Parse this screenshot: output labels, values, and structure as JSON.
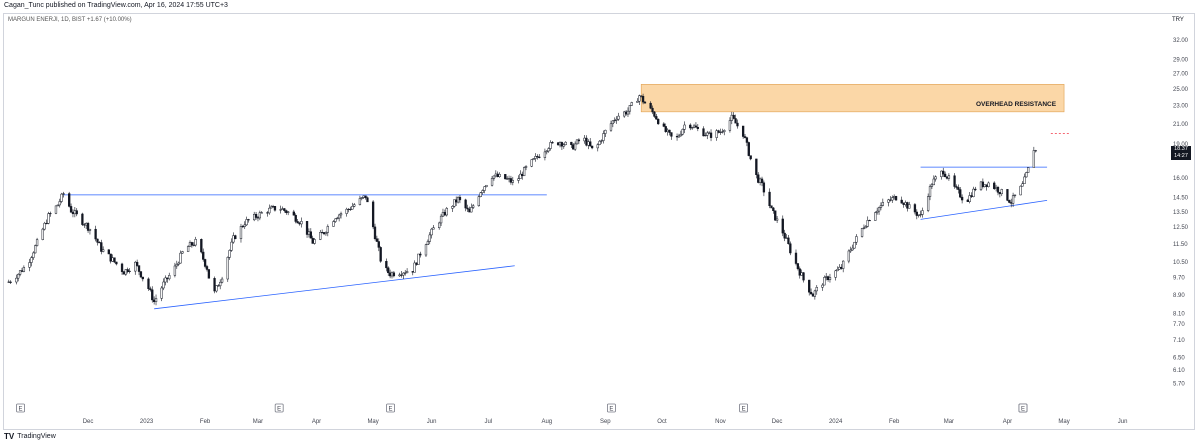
{
  "header": {
    "publish_line": "Cagan_Tunc published on TradingView.com, Apr 16, 2024 17:55 UTC+3",
    "legend": "MARGUN ENERJI, 1D, BIST  +1.67 (+10.00%)",
    "currency": "TRY"
  },
  "footer": {
    "logo_glyph": "TV",
    "brand": "TradingView"
  },
  "price_label": {
    "price": "18.37",
    "time": "14:27"
  },
  "colors": {
    "trendline": "#2962ff",
    "zone": "#f9c98a",
    "candle": "#131722",
    "price_label_bg": "#131722",
    "dashed_target": "#f23645"
  },
  "chart_data": {
    "type": "candlestick",
    "title": "MARGUN ENERJI, 1D, BIST",
    "y_scale": "log",
    "ylim": [
      5.2,
      35
    ],
    "y_ticks": [
      "32.00",
      "29.00",
      "27.00",
      "25.00",
      "23.00",
      "21.00",
      "19.00",
      "16.00",
      "14.50",
      "13.50",
      "12.50",
      "11.50",
      "10.50",
      "9.70",
      "8.90",
      "8.10",
      "7.70",
      "7.10",
      "6.50",
      "6.10",
      "5.70"
    ],
    "x_ticks": [
      "Dec",
      "2023",
      "Feb",
      "Mar",
      "Apr",
      "May",
      "Jun",
      "Jul",
      "Aug",
      "Sep",
      "Oct",
      "Nov",
      "Dec",
      "2024",
      "Feb",
      "Mar",
      "Apr",
      "May",
      "Jun"
    ],
    "event_markers": 7,
    "annotations": [
      {
        "type": "zone",
        "label": "OVERHEAD RESISTANCE",
        "from": "2023-09-20",
        "to": "2024-05-01",
        "low": 22.3,
        "high": 25.6
      },
      {
        "type": "horizontal",
        "from": "2022-11-18",
        "to": "2023-08-01",
        "price": 14.7
      },
      {
        "type": "trendline",
        "from": [
          "2023-01-05",
          8.3
        ],
        "to": [
          "2023-07-15",
          10.3
        ]
      },
      {
        "type": "horizontal",
        "from": "2024-02-15",
        "to": "2024-04-22",
        "price": 16.9
      },
      {
        "type": "trendline",
        "from": [
          "2024-02-15",
          13.0
        ],
        "to": [
          "2024-04-22",
          14.3
        ]
      },
      {
        "type": "dashed",
        "from": "2024-04-24",
        "to": "2024-05-04",
        "price": 20.0
      }
    ],
    "last_price": 18.37,
    "series": [
      {
        "name": "MARGUN ENERJI",
        "x": [
          "2022-10-20",
          "2022-10-25",
          "2022-10-30",
          "2022-11-05",
          "2022-11-10",
          "2022-11-15",
          "2022-11-18",
          "2022-11-22",
          "2022-11-27",
          "2022-12-02",
          "2022-12-08",
          "2022-12-14",
          "2022-12-20",
          "2022-12-26",
          "2023-01-02",
          "2023-01-05",
          "2023-01-10",
          "2023-01-16",
          "2023-01-21",
          "2023-01-27",
          "2023-02-02",
          "2023-02-05",
          "2023-02-10",
          "2023-02-16",
          "2023-02-22",
          "2023-02-28",
          "2023-03-06",
          "2023-03-12",
          "2023-03-18",
          "2023-03-24",
          "2023-03-30",
          "2023-04-05",
          "2023-04-11",
          "2023-04-17",
          "2023-04-23",
          "2023-04-27",
          "2023-05-02",
          "2023-05-06",
          "2023-05-10",
          "2023-05-16",
          "2023-05-22",
          "2023-05-28",
          "2023-06-03",
          "2023-06-09",
          "2023-06-15",
          "2023-06-21",
          "2023-06-27",
          "2023-07-03",
          "2023-07-09",
          "2023-07-15",
          "2023-07-21",
          "2023-07-27",
          "2023-08-02",
          "2023-08-08",
          "2023-08-14",
          "2023-08-20",
          "2023-08-26",
          "2023-09-01",
          "2023-09-07",
          "2023-09-13",
          "2023-09-19",
          "2023-09-23",
          "2023-09-27",
          "2023-10-02",
          "2023-10-08",
          "2023-10-14",
          "2023-10-20",
          "2023-10-26",
          "2023-11-01",
          "2023-11-07",
          "2023-11-13",
          "2023-11-19",
          "2023-11-23",
          "2023-11-28",
          "2023-12-04",
          "2023-12-10",
          "2023-12-16",
          "2023-12-20",
          "2023-12-24",
          "2023-12-29",
          "2024-01-04",
          "2024-01-10",
          "2024-01-16",
          "2024-01-22",
          "2024-01-28",
          "2024-02-03",
          "2024-02-09",
          "2024-02-15",
          "2024-02-21",
          "2024-02-27",
          "2024-03-04",
          "2024-03-10",
          "2024-03-16",
          "2024-03-22",
          "2024-03-28",
          "2024-04-03",
          "2024-04-09",
          "2024-04-12",
          "2024-04-16"
        ],
        "close": [
          9.5,
          9.9,
          10.4,
          11.8,
          13.2,
          14.0,
          14.8,
          13.6,
          13.0,
          12.4,
          11.2,
          10.6,
          10.0,
          10.4,
          9.2,
          8.6,
          9.4,
          10.2,
          11.2,
          11.6,
          10.2,
          8.8,
          9.8,
          11.8,
          12.8,
          13.2,
          13.6,
          13.8,
          13.4,
          12.8,
          11.6,
          12.2,
          13.2,
          13.6,
          14.2,
          14.6,
          12.0,
          10.2,
          9.9,
          10.0,
          10.1,
          11.4,
          12.6,
          13.6,
          14.4,
          13.4,
          15.0,
          16.2,
          16.0,
          15.6,
          16.8,
          17.8,
          18.8,
          19.2,
          18.6,
          19.6,
          18.2,
          20.2,
          21.8,
          22.4,
          24.2,
          23.0,
          22.0,
          20.4,
          19.2,
          21.2,
          20.4,
          19.8,
          20.2,
          21.6,
          20.0,
          16.4,
          15.4,
          13.6,
          12.2,
          10.6,
          9.4,
          8.9,
          9.4,
          9.8,
          10.2,
          11.4,
          12.6,
          13.6,
          14.2,
          14.6,
          13.8,
          13.2,
          15.6,
          16.6,
          15.2,
          14.2,
          15.4,
          15.6,
          15.0,
          14.2,
          15.4,
          16.7,
          18.37
        ]
      }
    ]
  }
}
